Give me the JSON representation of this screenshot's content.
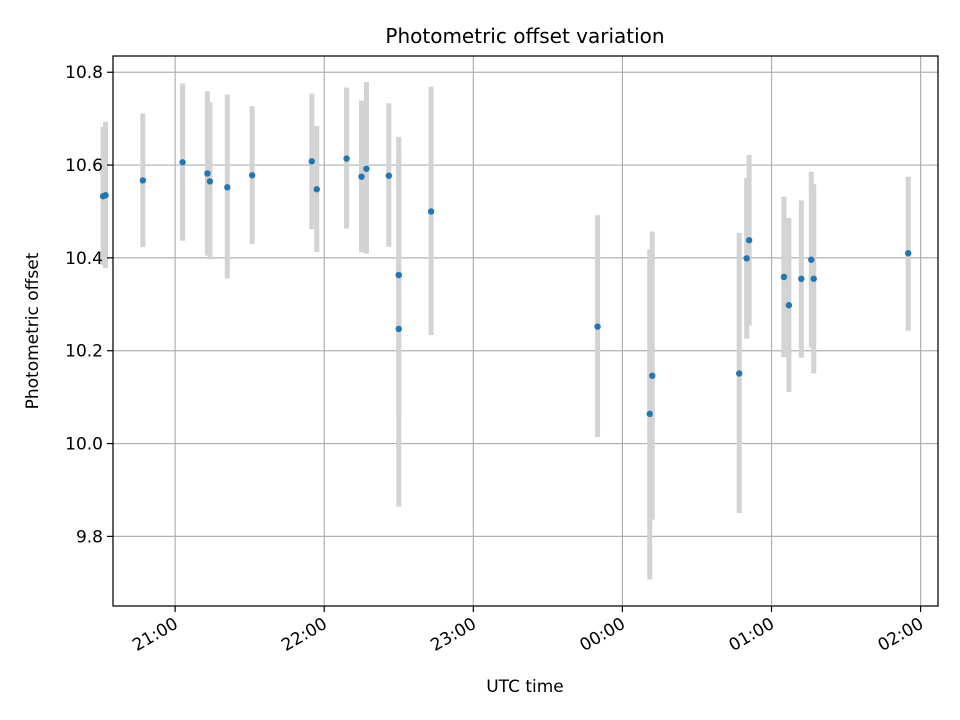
{
  "chart_data": {
    "type": "scatter",
    "title": "Photometric offset variation",
    "xlabel": "UTC time",
    "ylabel": "Photometric offset",
    "xlim": [
      "20:35",
      "02:07"
    ],
    "ylim": [
      9.65,
      10.835
    ],
    "grid": true,
    "marker_color": "#1f77b4",
    "errorbar_color": "#d3d3d3",
    "x_ticks": [
      "21:00",
      "22:00",
      "23:00",
      "00:00",
      "01:00",
      "02:00"
    ],
    "y_ticks": [
      9.8,
      10.0,
      10.2,
      10.4,
      10.6,
      10.8
    ],
    "points": [
      {
        "x": "20:31",
        "y": 10.533,
        "lo": 10.385,
        "hi": 10.682
      },
      {
        "x": "20:32",
        "y": 10.535,
        "lo": 10.378,
        "hi": 10.693
      },
      {
        "x": "20:47",
        "y": 10.567,
        "lo": 10.423,
        "hi": 10.711
      },
      {
        "x": "21:03",
        "y": 10.606,
        "lo": 10.437,
        "hi": 10.776
      },
      {
        "x": "21:13",
        "y": 10.582,
        "lo": 10.405,
        "hi": 10.759
      },
      {
        "x": "21:14",
        "y": 10.565,
        "lo": 10.397,
        "hi": 10.735
      },
      {
        "x": "21:21",
        "y": 10.552,
        "lo": 10.356,
        "hi": 10.752
      },
      {
        "x": "21:31",
        "y": 10.578,
        "lo": 10.43,
        "hi": 10.727
      },
      {
        "x": "21:55",
        "y": 10.608,
        "lo": 10.462,
        "hi": 10.754
      },
      {
        "x": "21:57",
        "y": 10.548,
        "lo": 10.413,
        "hi": 10.684
      },
      {
        "x": "22:09",
        "y": 10.614,
        "lo": 10.463,
        "hi": 10.767
      },
      {
        "x": "22:15",
        "y": 10.575,
        "lo": 10.412,
        "hi": 10.739
      },
      {
        "x": "22:17",
        "y": 10.592,
        "lo": 10.409,
        "hi": 10.779
      },
      {
        "x": "22:26",
        "y": 10.577,
        "lo": 10.424,
        "hi": 10.733
      },
      {
        "x": "22:30",
        "y": 10.363,
        "lo": 10.067,
        "hi": 10.661
      },
      {
        "x": "22:30",
        "y": 10.247,
        "lo": 9.864,
        "hi": 10.629
      },
      {
        "x": "22:43",
        "y": 10.5,
        "lo": 10.234,
        "hi": 10.769
      },
      {
        "x": "23:50",
        "y": 10.252,
        "lo": 10.014,
        "hi": 10.492
      },
      {
        "x": "00:11",
        "y": 10.064,
        "lo": 9.707,
        "hi": 10.418
      },
      {
        "x": "00:12",
        "y": 10.146,
        "lo": 9.836,
        "hi": 10.457
      },
      {
        "x": "00:47",
        "y": 10.151,
        "lo": 9.85,
        "hi": 10.454
      },
      {
        "x": "00:50",
        "y": 10.399,
        "lo": 10.226,
        "hi": 10.572
      },
      {
        "x": "00:51",
        "y": 10.438,
        "lo": 10.254,
        "hi": 10.622
      },
      {
        "x": "01:05",
        "y": 10.359,
        "lo": 10.186,
        "hi": 10.532
      },
      {
        "x": "01:07",
        "y": 10.298,
        "lo": 10.111,
        "hi": 10.486
      },
      {
        "x": "01:12",
        "y": 10.355,
        "lo": 10.185,
        "hi": 10.524
      },
      {
        "x": "01:16",
        "y": 10.396,
        "lo": 10.207,
        "hi": 10.586
      },
      {
        "x": "01:17",
        "y": 10.355,
        "lo": 10.151,
        "hi": 10.559
      },
      {
        "x": "01:55",
        "y": 10.41,
        "lo": 10.243,
        "hi": 10.575
      }
    ]
  }
}
